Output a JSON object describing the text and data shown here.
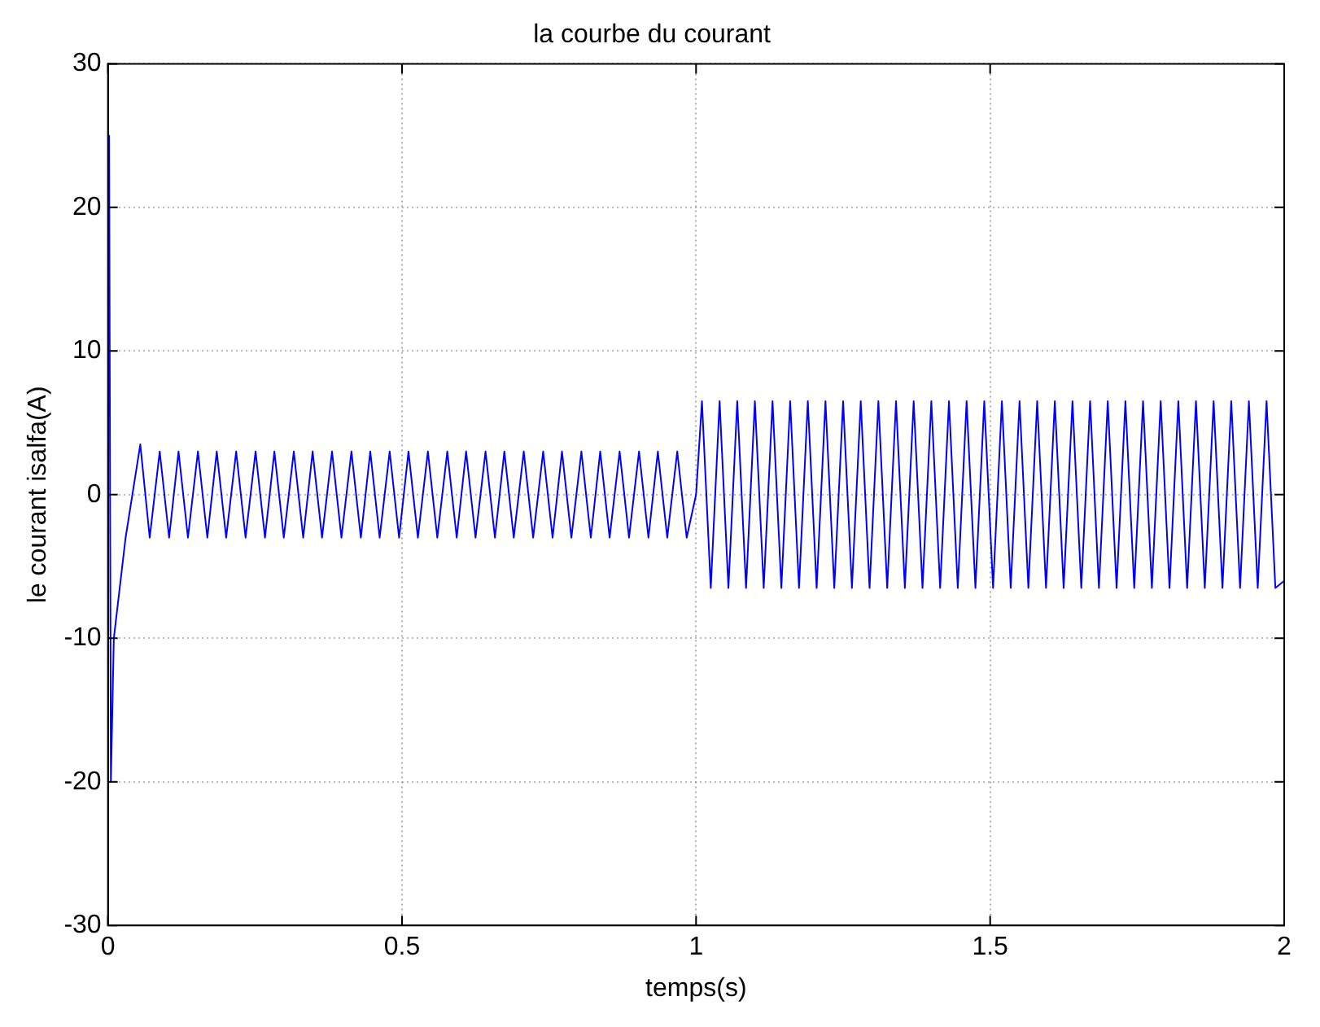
{
  "chart_data": {
    "type": "line",
    "title": "la courbe du courant",
    "xlabel": "temps(s)",
    "ylabel": "le courant isalfa(A)",
    "xlim": [
      0,
      2
    ],
    "xticks": [
      0,
      0.5,
      1,
      1.5,
      2
    ],
    "ylim": [
      -30,
      30
    ],
    "yticks": [
      -30,
      -20,
      -10,
      0,
      10,
      20,
      30
    ],
    "grid": true,
    "legend": false,
    "marker": "none",
    "line_style": "solid",
    "series": [
      {
        "color": "#0000ff",
        "x": [
          0,
          0.002,
          0.005,
          0.01,
          0.03,
          0.055,
          0.071,
          0.088,
          0.104,
          0.12,
          0.136,
          0.153,
          0.169,
          0.185,
          0.201,
          0.218,
          0.234,
          0.251,
          0.267,
          0.283,
          0.299,
          0.316,
          0.332,
          0.348,
          0.364,
          0.381,
          0.397,
          0.414,
          0.43,
          0.446,
          0.462,
          0.479,
          0.495,
          0.511,
          0.527,
          0.544,
          0.56,
          0.577,
          0.593,
          0.609,
          0.625,
          0.642,
          0.658,
          0.674,
          0.69,
          0.707,
          0.723,
          0.74,
          0.756,
          0.772,
          0.788,
          0.805,
          0.821,
          0.837,
          0.853,
          0.87,
          0.886,
          0.903,
          0.919,
          0.935,
          0.951,
          0.968,
          0.984,
          1.0,
          1.01,
          1.025,
          1.04,
          1.055,
          1.07,
          1.085,
          1.1,
          1.115,
          1.13,
          1.145,
          1.16,
          1.175,
          1.19,
          1.205,
          1.22,
          1.235,
          1.25,
          1.265,
          1.28,
          1.295,
          1.31,
          1.325,
          1.34,
          1.355,
          1.37,
          1.385,
          1.4,
          1.415,
          1.43,
          1.445,
          1.46,
          1.475,
          1.49,
          1.505,
          1.52,
          1.535,
          1.55,
          1.565,
          1.58,
          1.595,
          1.61,
          1.625,
          1.64,
          1.655,
          1.67,
          1.685,
          1.7,
          1.715,
          1.73,
          1.745,
          1.76,
          1.775,
          1.79,
          1.805,
          1.82,
          1.835,
          1.85,
          1.865,
          1.88,
          1.895,
          1.91,
          1.925,
          1.94,
          1.955,
          1.97,
          1.985,
          2.0
        ],
        "values": [
          2,
          25,
          -20,
          -10,
          -3,
          3.5,
          -3,
          3,
          -3,
          3,
          -3,
          3,
          -3,
          3,
          -3,
          3,
          -3,
          3,
          -3,
          3,
          -3,
          3,
          -3,
          3,
          -3,
          3,
          -3,
          3,
          -3,
          3,
          -3,
          3,
          -3,
          3,
          -3,
          3,
          -3,
          3,
          -3,
          3,
          -3,
          3,
          -3,
          3,
          -3,
          3,
          -3,
          3,
          -3,
          3,
          -3,
          3,
          -3,
          3,
          -3,
          3,
          -3,
          3,
          -3,
          3,
          -3,
          3,
          -3,
          0,
          6.5,
          -6.5,
          6.5,
          -6.5,
          6.5,
          -6.5,
          6.5,
          -6.5,
          6.5,
          -6.5,
          6.5,
          -6.5,
          6.5,
          -6.5,
          6.5,
          -6.5,
          6.5,
          -6.5,
          6.5,
          -6.5,
          6.5,
          -6.5,
          6.5,
          -6.5,
          6.5,
          -6.5,
          6.5,
          -6.5,
          6.5,
          -6.5,
          6.5,
          -6.5,
          6.5,
          -6.5,
          6.5,
          -6.5,
          6.5,
          -6.5,
          6.5,
          -6.5,
          6.5,
          -6.5,
          6.5,
          -6.5,
          6.5,
          -6.5,
          6.5,
          -6.5,
          6.5,
          -6.5,
          6.5,
          -6.5,
          6.5,
          -6.5,
          6.5,
          -6.5,
          6.5,
          -6.5,
          6.5,
          -6.5,
          6.5,
          -6.5,
          6.5,
          -6.5,
          6.5,
          -6.5,
          -6
        ]
      }
    ]
  }
}
